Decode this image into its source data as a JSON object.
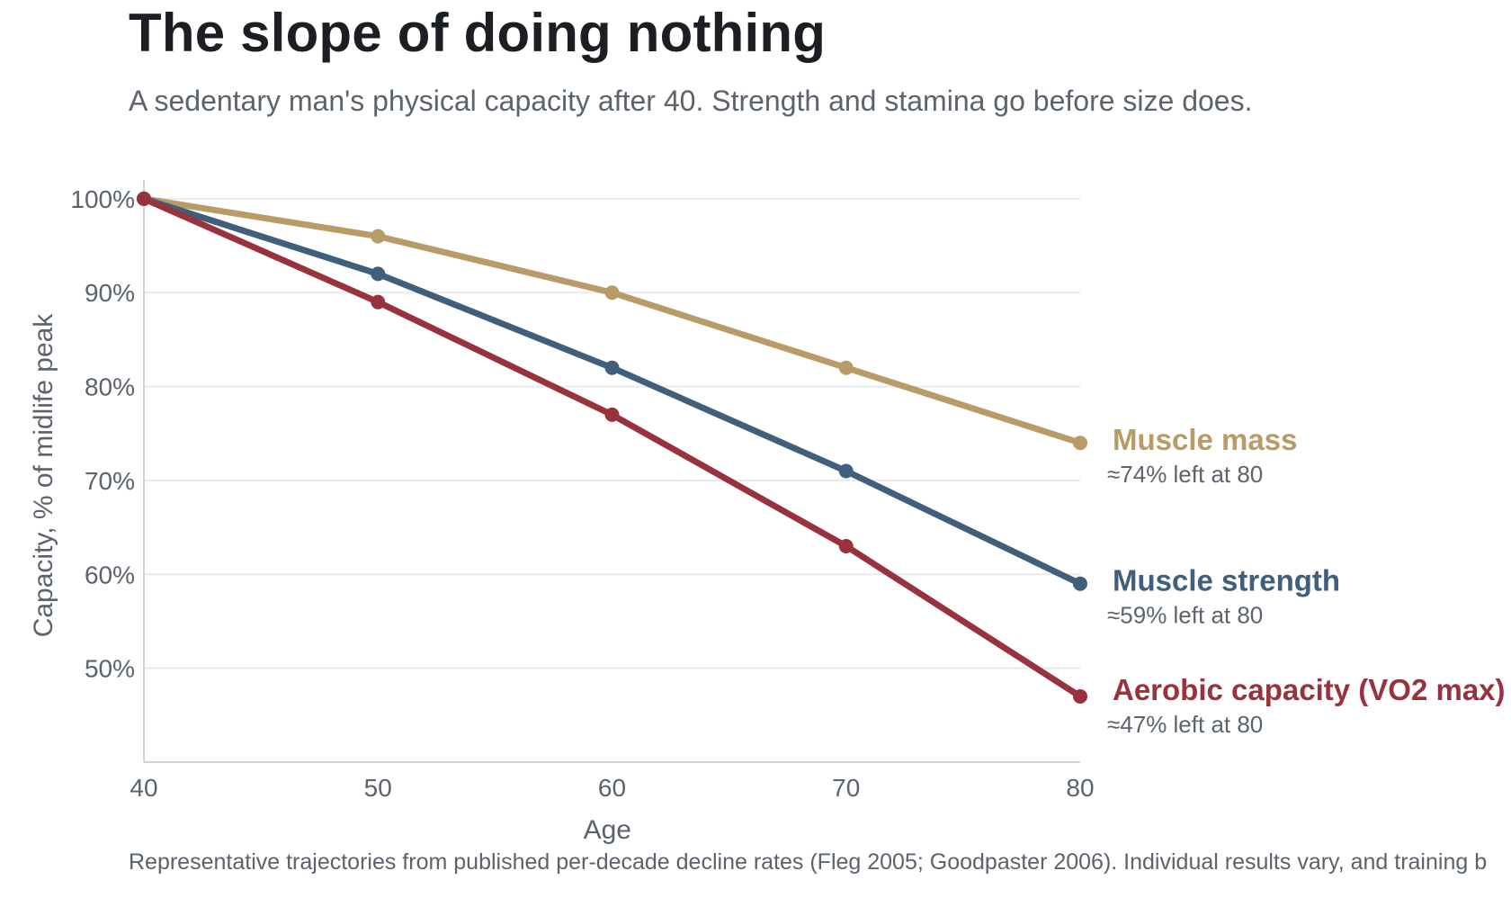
{
  "chart": {
    "title": "The slope of doing nothing",
    "subtitle": "A sedentary man's physical capacity after 40. Strength and stamina go before size does.",
    "footnote": "Representative trajectories from published per-decade decline rates (Fleg 2005; Goodpaster 2006). Individual results vary, and training b"
  },
  "chart_data": {
    "type": "line",
    "title": "The slope of doing nothing",
    "subtitle": "A sedentary man's physical capacity after 40. Strength and stamina go before size does.",
    "xlabel": "Age",
    "ylabel": "Capacity, % of midlife peak",
    "x": [
      40,
      50,
      60,
      70,
      80
    ],
    "xlim": [
      40,
      80
    ],
    "ylim": [
      40,
      102
    ],
    "x_ticks": [
      "40",
      "50",
      "60",
      "70",
      "80"
    ],
    "y_ticks": [
      "50%",
      "60%",
      "70%",
      "80%",
      "90%",
      "100%"
    ],
    "grid": "horizontal",
    "legend": "direct labels at line ends (right)",
    "series": [
      {
        "name": "Muscle mass",
        "values": [
          100,
          96,
          90,
          82,
          74
        ],
        "color": "#b89b67",
        "end_note": "≈74% left at 80"
      },
      {
        "name": "Muscle strength",
        "values": [
          100,
          92,
          82,
          71,
          59
        ],
        "color": "#3f5f7a",
        "end_note": "≈59% left at 80"
      },
      {
        "name": "Aerobic capacity (VO2 max)",
        "values": [
          100,
          89,
          77,
          63,
          47
        ],
        "color": "#98333d",
        "end_note": "≈47% left at 80"
      }
    ]
  }
}
